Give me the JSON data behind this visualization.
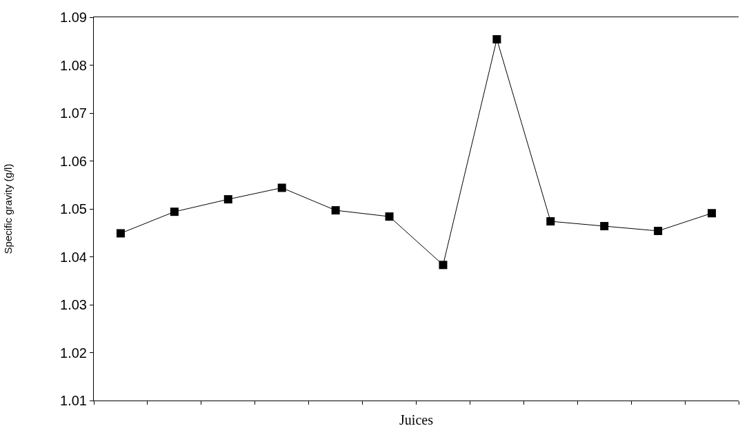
{
  "chart_data": {
    "type": "line",
    "xlabel": "Juices",
    "ylabel": "Specific gravity (g/l)",
    "categories": [
      null,
      null,
      null,
      null,
      null,
      null,
      null,
      null,
      null,
      null,
      null,
      null
    ],
    "series": [
      {
        "color": "#000000",
        "values": [
          1.0449,
          1.0494,
          1.052,
          1.0544,
          1.0497,
          1.0484,
          1.0383,
          1.0854,
          1.0474,
          1.0464,
          1.0454,
          1.0491
        ]
      }
    ],
    "ylim": [
      1.01,
      1.09
    ],
    "yticks": [
      1.01,
      1.02,
      1.03,
      1.04,
      1.05,
      1.06,
      1.07,
      1.08,
      1.09
    ],
    "marker": "square",
    "line_style": "solid",
    "tick_labels": "y"
  }
}
